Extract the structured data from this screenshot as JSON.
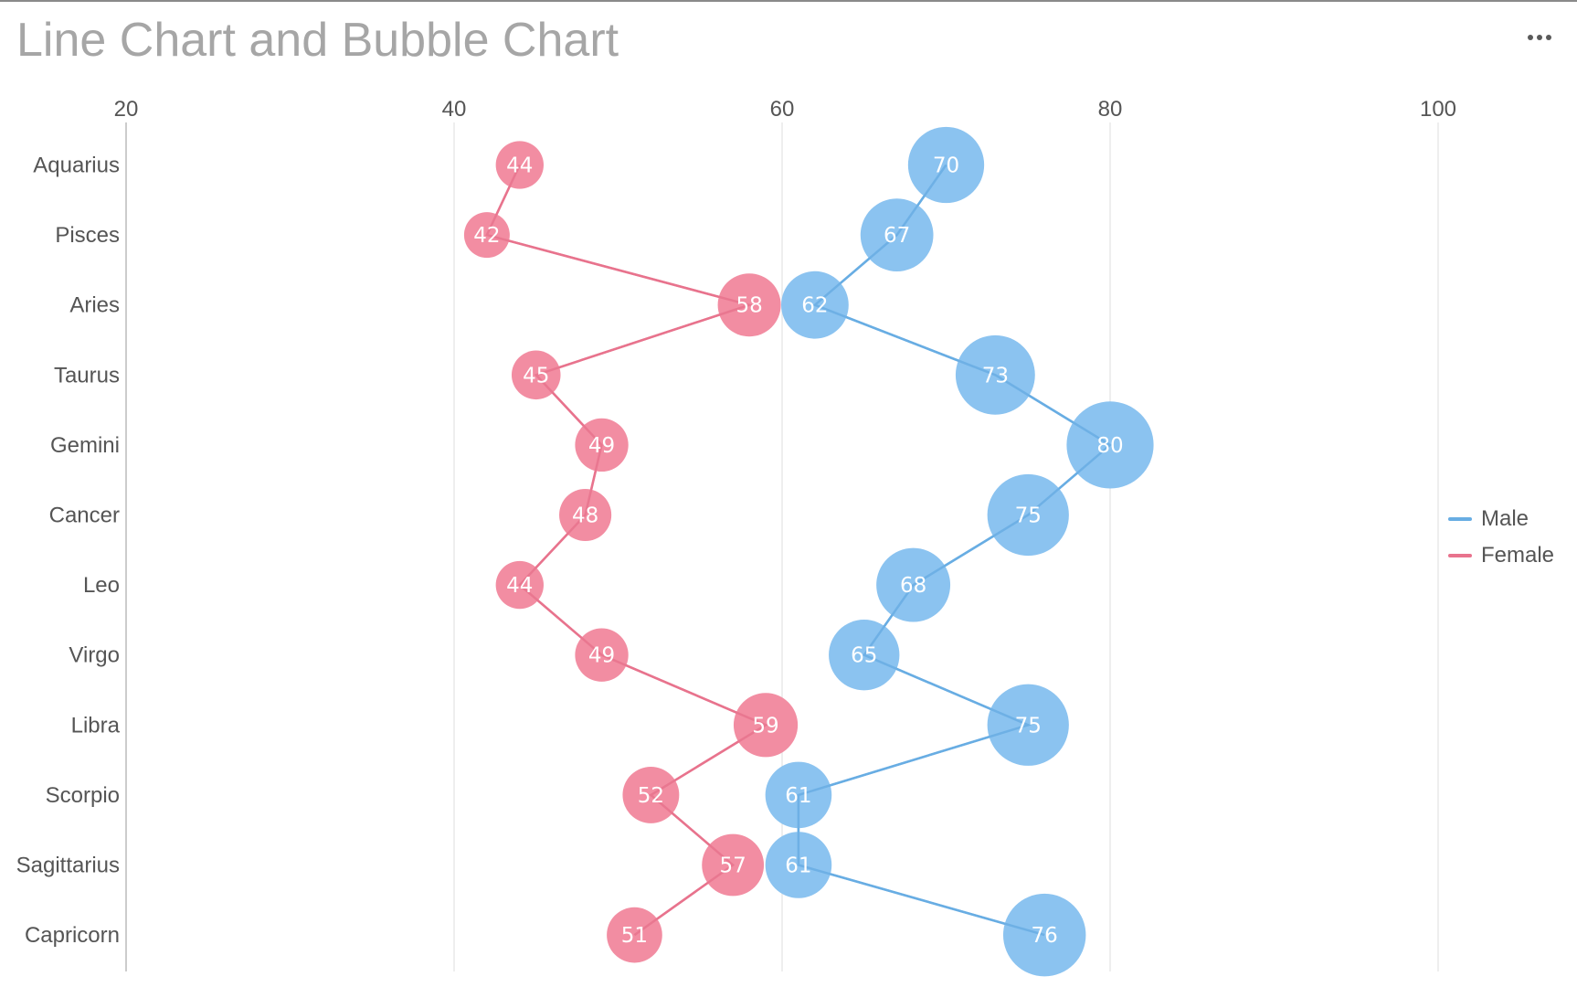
{
  "title": "Line Chart and Bubble Chart",
  "menu": {
    "icon": "more-horizontal-icon"
  },
  "colors": {
    "male": "#68ADE3",
    "male_bubble": "#8BC3F0",
    "female": "#E8738D",
    "female_bubble": "#F28DA2",
    "grid": "#e8e8e8",
    "axis": "#cccccc"
  },
  "legend": {
    "position": "right",
    "items": [
      {
        "label": "Male",
        "color": "#68ADE3"
      },
      {
        "label": "Female",
        "color": "#E8738D"
      }
    ]
  },
  "chart_data": {
    "type": "line",
    "title": "Line Chart and Bubble Chart",
    "orientation": "horizontal",
    "categories": [
      "Aquarius",
      "Pisces",
      "Aries",
      "Taurus",
      "Gemini",
      "Cancer",
      "Leo",
      "Virgo",
      "Libra",
      "Scorpio",
      "Sagittarius",
      "Capricorn"
    ],
    "x_ticks": [
      "20",
      "40",
      "60",
      "80",
      "100"
    ],
    "xlim": [
      20,
      106
    ],
    "grid": true,
    "series": [
      {
        "name": "Male",
        "values": [
          70,
          67,
          62,
          73,
          80,
          75,
          68,
          65,
          75,
          61,
          61,
          76
        ]
      },
      {
        "name": "Female",
        "values": [
          44,
          42,
          58,
          45,
          49,
          48,
          44,
          49,
          59,
          52,
          57,
          51
        ]
      }
    ],
    "bubble_size": "proportional to value"
  }
}
